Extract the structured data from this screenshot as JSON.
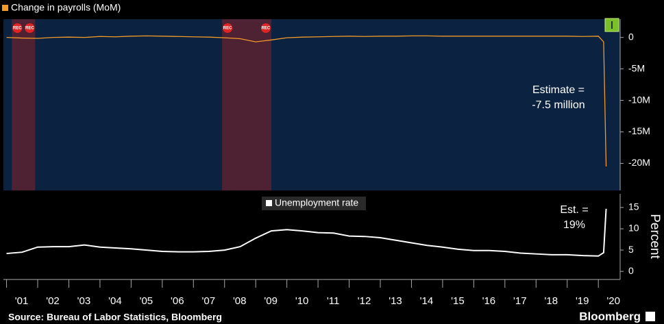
{
  "chart_data": [
    {
      "type": "line",
      "series": [
        {
          "name": "Change in payrolls (MoM)",
          "color": "#f39a2b",
          "x": [
            2001.0,
            2001.5,
            2002.0,
            2002.5,
            2003.0,
            2003.5,
            2004.0,
            2004.5,
            2005.0,
            2005.5,
            2006.0,
            2006.5,
            2007.0,
            2007.5,
            2008.0,
            2008.5,
            2009.0,
            2009.5,
            2010.0,
            2010.5,
            2011.0,
            2011.5,
            2012.0,
            2012.5,
            2013.0,
            2013.5,
            2014.0,
            2014.5,
            2015.0,
            2015.5,
            2016.0,
            2016.5,
            2017.0,
            2017.5,
            2018.0,
            2018.5,
            2019.0,
            2019.5,
            2020.0,
            2020.17,
            2020.25
          ],
          "values": [
            0.0,
            -0.1,
            -0.15,
            0.0,
            0.05,
            0.0,
            0.15,
            0.1,
            0.2,
            0.25,
            0.2,
            0.15,
            0.1,
            0.05,
            -0.05,
            -0.2,
            -0.7,
            -0.4,
            -0.05,
            0.05,
            0.1,
            0.15,
            0.2,
            0.15,
            0.2,
            0.2,
            0.25,
            0.25,
            0.2,
            0.2,
            0.2,
            0.2,
            0.2,
            0.2,
            0.2,
            0.2,
            0.2,
            0.15,
            0.2,
            -0.7,
            -20.5
          ]
        }
      ],
      "recessions": [
        {
          "start": 2001.17,
          "end": 2001.92
        },
        {
          "start": 2007.92,
          "end": 2009.5
        }
      ],
      "recession_label": "REC",
      "annotation": [
        "Estimate =",
        "-7.5 million"
      ],
      "xlim": [
        2000.9,
        2020.7
      ],
      "ylim": [
        -24.3,
        2.9
      ],
      "yticks": [
        0,
        {
          "value": -5,
          "label": "-5M"
        },
        {
          "value": -10,
          "label": "-10M"
        },
        {
          "value": -15,
          "label": "-15M"
        },
        {
          "value": -20,
          "label": "-20M"
        }
      ]
    },
    {
      "type": "line",
      "series": [
        {
          "name": "Unemployment rate",
          "color": "#ffffff",
          "x": [
            2001.0,
            2001.5,
            2002.0,
            2002.5,
            2003.0,
            2003.5,
            2004.0,
            2004.5,
            2005.0,
            2005.5,
            2006.0,
            2006.5,
            2007.0,
            2007.5,
            2008.0,
            2008.5,
            2009.0,
            2009.5,
            2010.0,
            2010.5,
            2011.0,
            2011.5,
            2012.0,
            2012.5,
            2013.0,
            2013.5,
            2014.0,
            2014.5,
            2015.0,
            2015.5,
            2016.0,
            2016.5,
            2017.0,
            2017.5,
            2018.0,
            2018.5,
            2019.0,
            2019.5,
            2020.0,
            2020.17,
            2020.25
          ],
          "values": [
            4.2,
            4.5,
            5.7,
            5.8,
            5.8,
            6.2,
            5.7,
            5.5,
            5.3,
            5.0,
            4.7,
            4.6,
            4.6,
            4.7,
            5.0,
            5.8,
            7.8,
            9.5,
            9.8,
            9.5,
            9.1,
            9.0,
            8.3,
            8.2,
            7.9,
            7.3,
            6.7,
            6.1,
            5.7,
            5.2,
            4.9,
            4.9,
            4.7,
            4.3,
            4.1,
            3.9,
            3.9,
            3.7,
            3.6,
            4.4,
            14.7
          ]
        }
      ],
      "annotation": [
        "Est. =",
        "19%"
      ],
      "y_label": "Percent",
      "xlim": [
        2000.9,
        2020.7
      ],
      "ylim": [
        -1.9,
        18.2
      ],
      "yticks": [
        0,
        5,
        10,
        15
      ],
      "xticks": [
        {
          "value": 2001,
          "label": "'01"
        },
        {
          "value": 2002,
          "label": "'02"
        },
        {
          "value": 2003,
          "label": "'03"
        },
        {
          "value": 2004,
          "label": "'04"
        },
        {
          "value": 2005,
          "label": "'05"
        },
        {
          "value": 2006,
          "label": "'06"
        },
        {
          "value": 2007,
          "label": "'07"
        },
        {
          "value": 2008,
          "label": "'08"
        },
        {
          "value": 2009,
          "label": "'09"
        },
        {
          "value": 2010,
          "label": "'10"
        },
        {
          "value": 2011,
          "label": "'11"
        },
        {
          "value": 2012,
          "label": "'12"
        },
        {
          "value": 2013,
          "label": "'13"
        },
        {
          "value": 2014,
          "label": "'14"
        },
        {
          "value": 2015,
          "label": "'15"
        },
        {
          "value": 2016,
          "label": "'16"
        },
        {
          "value": 2017,
          "label": "'17"
        },
        {
          "value": 2018,
          "label": "'18"
        },
        {
          "value": 2019,
          "label": "'19"
        },
        {
          "value": 2020,
          "label": "'20"
        }
      ]
    }
  ],
  "source": "Source: Bureau of Labor Statistics, Bloomberg",
  "brand": "Bloomberg"
}
